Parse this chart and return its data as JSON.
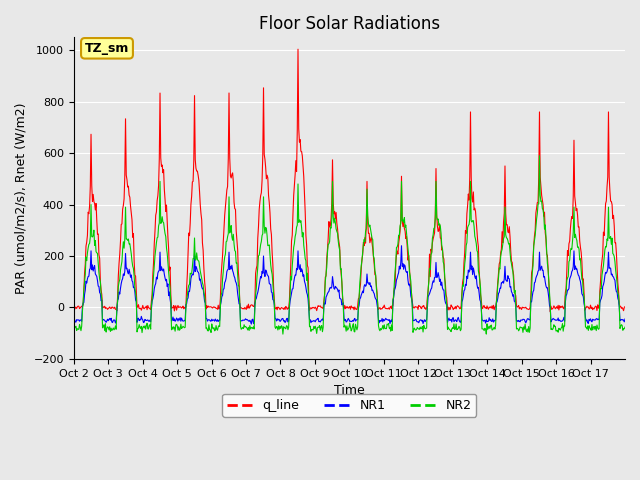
{
  "title": "Floor Solar Radiations",
  "xlabel": "Time",
  "ylabel": "PAR (umol/m2/s), Rnet (W/m2)",
  "ylim": [
    -200,
    1050
  ],
  "yticks": [
    -200,
    0,
    200,
    400,
    600,
    800,
    1000
  ],
  "plot_bg_color": "#e8e8e8",
  "xtick_labels": [
    "Oct 2",
    "Oct 3",
    "Oct 4",
    "Oct 5",
    "Oct 6",
    "Oct 7",
    "Oct 8",
    "Oct 9",
    "Oct 10",
    "Oct 11",
    "Oct 12",
    "Oct 13",
    "Oct 14",
    "Oct 15",
    "Oct 16",
    "Oct 17"
  ],
  "xtick_positions": [
    0,
    1,
    2,
    3,
    4,
    5,
    6,
    7,
    8,
    9,
    10,
    11,
    12,
    13,
    14,
    15
  ],
  "annotation_text": "TZ_sm",
  "annotation_bg": "#ffff99",
  "annotation_border": "#cc9900",
  "legend_entries": [
    "q_line",
    "NR1",
    "NR2"
  ],
  "line_colors": [
    "#ff0000",
    "#0000ff",
    "#00cc00"
  ],
  "num_days": 16,
  "points_per_day": 48
}
